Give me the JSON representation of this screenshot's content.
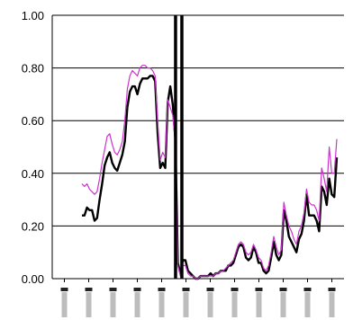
{
  "chart_data": {
    "type": "line",
    "title": "",
    "xlabel": "",
    "ylabel": "",
    "ylim": [
      0,
      1
    ],
    "yticks": [
      "0.00",
      "0.20",
      "0.40",
      "0.60",
      "0.80",
      "1.00"
    ],
    "grid": "horizontal",
    "legend": "none",
    "x_label_count": 12,
    "x": [
      0,
      1,
      2,
      3,
      4,
      5,
      6,
      7,
      8,
      9,
      10,
      11,
      12,
      13,
      14,
      15,
      16,
      17,
      18,
      19,
      20,
      21,
      22,
      23,
      24,
      25,
      26,
      27,
      28,
      29,
      30,
      31,
      32,
      33,
      34,
      35,
      36,
      37,
      38,
      39,
      40,
      41,
      42,
      43,
      44,
      45,
      46,
      47,
      48,
      49,
      50,
      51,
      52,
      53,
      54,
      55,
      56,
      57,
      58,
      59,
      60,
      61,
      62,
      63,
      64,
      65,
      66,
      67,
      68,
      69,
      70,
      71,
      72,
      73,
      74,
      75,
      76,
      77,
      78,
      79,
      80,
      81,
      82,
      83,
      84,
      85,
      86,
      87,
      88,
      89,
      90,
      91,
      92,
      93,
      94,
      95,
      96,
      97,
      98,
      99,
      100,
      101
    ],
    "series": [
      {
        "color": "#000000",
        "values": [
          0.24,
          0.24,
          0.27,
          0.26,
          0.26,
          0.22,
          0.23,
          0.3,
          0.36,
          0.43,
          0.46,
          0.48,
          0.44,
          0.42,
          0.41,
          0.44,
          0.47,
          0.52,
          0.65,
          0.71,
          0.73,
          0.73,
          0.7,
          0.74,
          0.76,
          0.76,
          0.76,
          0.77,
          0.77,
          0.75,
          0.55,
          0.42,
          0.44,
          0.42,
          0.67,
          0.73,
          0.66,
          0.53,
          0.06,
          0.02,
          0.07,
          0.07,
          0.03,
          0.02,
          0.01,
          0.0,
          0.0,
          0.01,
          0.01,
          0.01,
          0.01,
          0.02,
          0.01,
          0.02,
          0.02,
          0.03,
          0.03,
          0.03,
          0.05,
          0.05,
          0.06,
          0.09,
          0.12,
          0.13,
          0.12,
          0.08,
          0.07,
          0.08,
          0.12,
          0.1,
          0.06,
          0.06,
          0.03,
          0.02,
          0.03,
          0.08,
          0.14,
          0.09,
          0.07,
          0.09,
          0.26,
          0.22,
          0.16,
          0.14,
          0.12,
          0.1,
          0.15,
          0.17,
          0.22,
          0.32,
          0.24,
          0.24,
          0.24,
          0.22,
          0.18,
          0.35,
          0.33,
          0.28,
          0.38,
          0.32,
          0.31,
          0.46
        ]
      },
      {
        "color": "#cc33cc",
        "values": [
          0.36,
          0.35,
          0.36,
          0.34,
          0.33,
          0.32,
          0.33,
          0.38,
          0.44,
          0.49,
          0.54,
          0.55,
          0.51,
          0.48,
          0.47,
          0.49,
          0.52,
          0.6,
          0.72,
          0.77,
          0.79,
          0.78,
          0.77,
          0.8,
          0.81,
          0.81,
          0.8,
          0.8,
          0.79,
          0.77,
          0.6,
          0.45,
          0.48,
          0.46,
          0.68,
          0.65,
          0.62,
          0.52,
          0.05,
          0.01,
          0.05,
          0.05,
          0.02,
          0.01,
          0.01,
          0.0,
          0.0,
          0.01,
          0.01,
          0.01,
          0.01,
          0.01,
          0.01,
          0.02,
          0.02,
          0.03,
          0.03,
          0.04,
          0.05,
          0.06,
          0.07,
          0.1,
          0.13,
          0.14,
          0.13,
          0.1,
          0.09,
          0.1,
          0.13,
          0.11,
          0.08,
          0.07,
          0.04,
          0.03,
          0.05,
          0.1,
          0.16,
          0.12,
          0.09,
          0.11,
          0.29,
          0.24,
          0.2,
          0.18,
          0.15,
          0.13,
          0.18,
          0.2,
          0.25,
          0.34,
          0.29,
          0.28,
          0.28,
          0.26,
          0.22,
          0.42,
          0.38,
          0.33,
          0.5,
          0.4,
          0.4,
          0.53
        ]
      }
    ],
    "vertical_markers": [
      37.1,
      39.6
    ]
  }
}
